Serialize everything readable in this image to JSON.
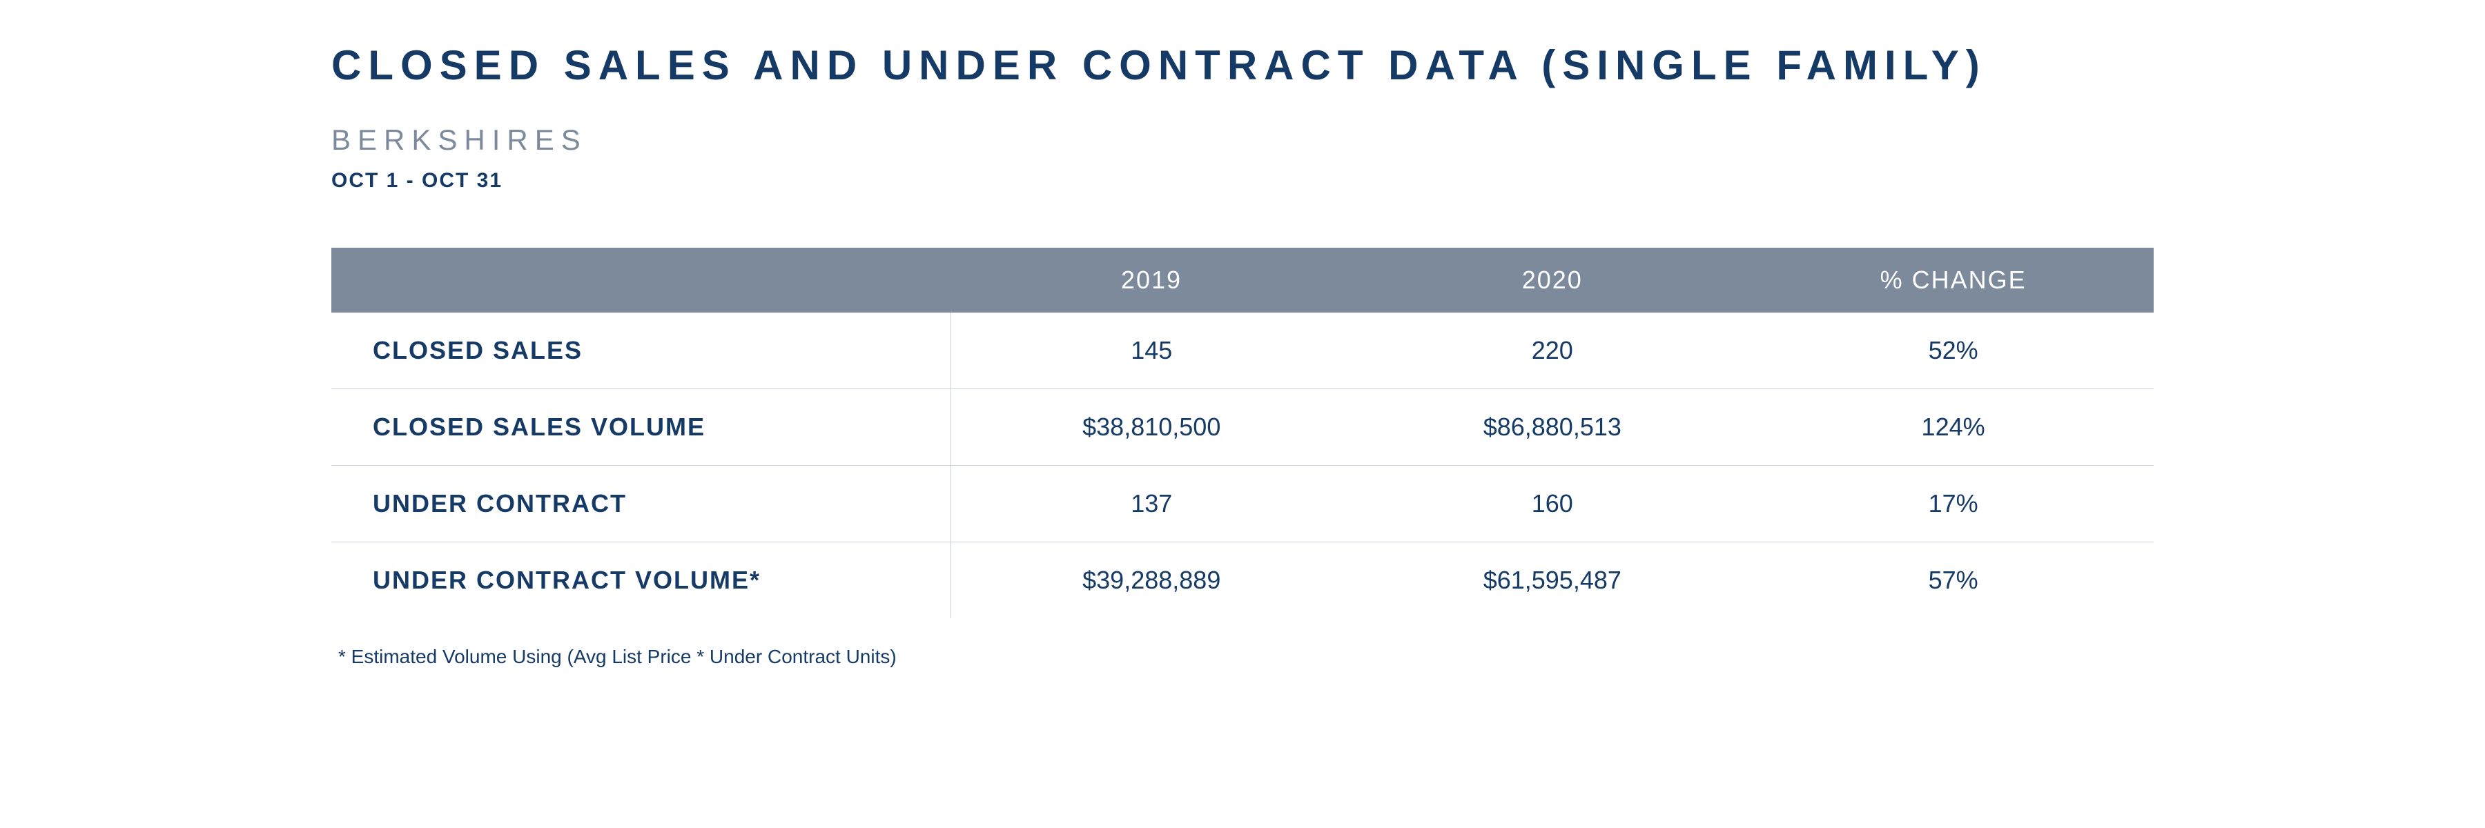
{
  "title": "CLOSED SALES AND UNDER CONTRACT DATA (SINGLE FAMILY)",
  "subtitle": "BERKSHIRES",
  "date_range": "OCT 1 - OCT 31",
  "table": {
    "type": "table",
    "header_bg": "#7c8a9c",
    "header_text_color": "#ffffff",
    "body_text_color": "#163a66",
    "border_color": "#c9d0d9",
    "font_size_header": 36,
    "font_size_body": 36,
    "columns": [
      "",
      "2019",
      "2020",
      "% CHANGE"
    ],
    "column_widths_pct": [
      34,
      22,
      22,
      22
    ],
    "rows": [
      {
        "label": "CLOSED SALES",
        "y2019": "145",
        "y2020": "220",
        "change": "52%"
      },
      {
        "label": "CLOSED SALES VOLUME",
        "y2019": "$38,810,500",
        "y2020": "$86,880,513",
        "change": "124%"
      },
      {
        "label": "UNDER CONTRACT",
        "y2019": "137",
        "y2020": "160",
        "change": "17%"
      },
      {
        "label": "UNDER CONTRACT VOLUME*",
        "y2019": "$39,288,889",
        "y2020": "$61,595,487",
        "change": "57%"
      }
    ]
  },
  "footnote": "* Estimated Volume Using (Avg List Price * Under Contract Units)",
  "colors": {
    "title": "#163a66",
    "subtitle": "#7c8a9c",
    "background": "#ffffff"
  }
}
